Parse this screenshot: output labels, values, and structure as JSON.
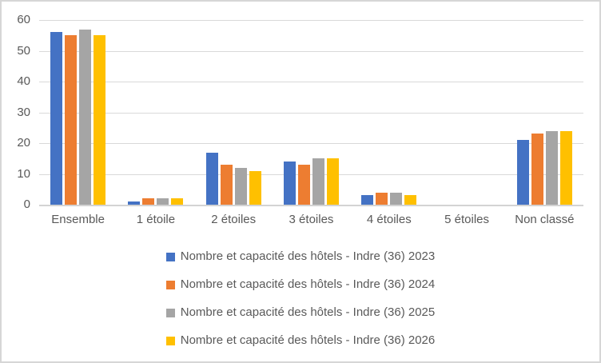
{
  "chart_data": {
    "type": "bar",
    "title": "",
    "categories": [
      "Ensemble",
      "1 étoile",
      "2 étoiles",
      "3 étoiles",
      "4 étoiles",
      "5 étoiles",
      "Non classé"
    ],
    "series": [
      {
        "name": "Nombre et capacité des hôtels - Indre (36) 2023",
        "color": "#4472C4",
        "values": [
          56,
          1,
          17,
          14,
          3,
          0,
          21
        ]
      },
      {
        "name": "Nombre et capacité des hôtels - Indre (36) 2024",
        "color": "#ED7D31",
        "values": [
          55,
          2,
          13,
          13,
          4,
          0,
          23
        ]
      },
      {
        "name": "Nombre et capacité des hôtels - Indre (36) 2025",
        "color": "#A5A5A5",
        "values": [
          57,
          2,
          12,
          15,
          4,
          0,
          24
        ]
      },
      {
        "name": "Nombre et capacité des hôtels - Indre (36) 2026",
        "color": "#FFC000",
        "values": [
          55,
          2,
          11,
          15,
          3,
          0,
          24
        ]
      }
    ],
    "xlabel": "",
    "ylabel": "",
    "ylim": [
      0,
      60
    ],
    "yticks": [
      0,
      10,
      20,
      30,
      40,
      50,
      60
    ],
    "grid": true,
    "legend_position": "bottom",
    "gridline_color": "#D9D9D9",
    "axis_text_color": "#595959"
  }
}
